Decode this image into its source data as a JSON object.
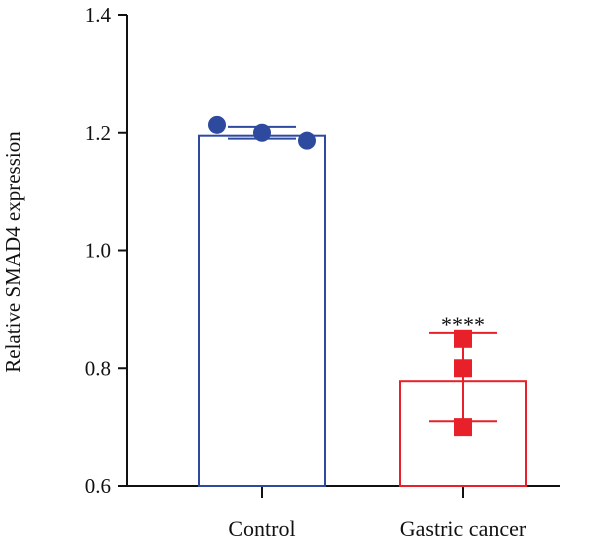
{
  "chart_data": {
    "type": "bar",
    "title": "",
    "xlabel": "",
    "ylabel": "Relative SMAD4 expression",
    "ylim": [
      0.6,
      1.4
    ],
    "yticks": [
      "0.6",
      "0.8",
      "1.0",
      "1.2",
      "1.4"
    ],
    "categories": [
      "Control",
      "Gastric cancer"
    ],
    "values": [
      1.195,
      0.778
    ],
    "error_upper": [
      1.21,
      0.86
    ],
    "error_lower": [
      1.19,
      0.71
    ],
    "points": [
      [
        1.21,
        1.2,
        1.19
      ],
      [
        0.85,
        0.8,
        0.7
      ]
    ],
    "markers": [
      "circle",
      "square"
    ],
    "colors": [
      "#2e4a9e",
      "#e8202a"
    ],
    "annotations": [
      {
        "category": "Gastric cancer",
        "text": "****"
      }
    ],
    "grid": false,
    "legend": "none"
  }
}
